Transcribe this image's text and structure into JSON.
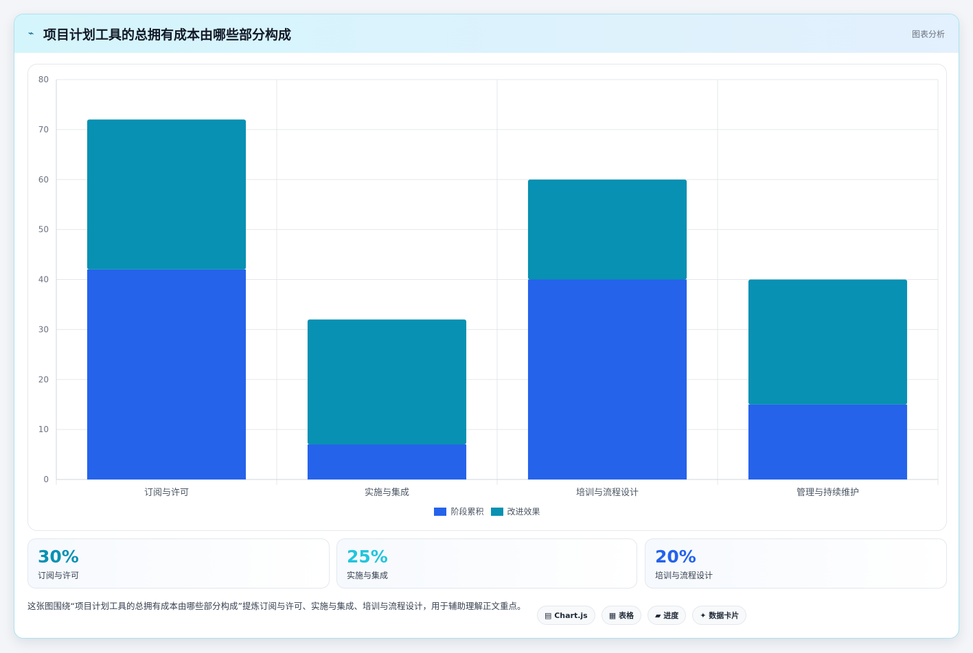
{
  "header": {
    "icon": "trend-icon",
    "title": "项目计划工具的总拥有成本由哪些部分构成",
    "tag": "图表分析"
  },
  "chart_data": {
    "type": "bar",
    "stacked": true,
    "categories": [
      "订阅与许可",
      "实施与集成",
      "培训与流程设计",
      "管理与持续维护"
    ],
    "series": [
      {
        "name": "阶段累积",
        "values": [
          42,
          7,
          40,
          15
        ],
        "color": "#2563eb"
      },
      {
        "name": "改进效果",
        "values": [
          30,
          25,
          20,
          25
        ],
        "color": "#0891b2"
      }
    ],
    "ylim": [
      0,
      80
    ],
    "yticks": [
      0,
      10,
      20,
      30,
      40,
      50,
      60,
      70,
      80
    ],
    "grid": true,
    "legend": "bottom-center"
  },
  "stats": [
    {
      "value": "30%",
      "label": "订阅与许可",
      "color": "#0891b2"
    },
    {
      "value": "25%",
      "label": "实施与集成",
      "color": "#22c5dc"
    },
    {
      "value": "20%",
      "label": "培训与流程设计",
      "color": "#2563eb"
    }
  ],
  "footer": {
    "text": "这张图围绕“项目计划工具的总拥有成本由哪些部分构成”提炼订阅与许可、实施与集成、培训与流程设计，用于辅助理解正文重点。",
    "chips": [
      "▤ Chart.js",
      "▦ 表格",
      "▰ 进度",
      "✦ 数据卡片"
    ]
  }
}
